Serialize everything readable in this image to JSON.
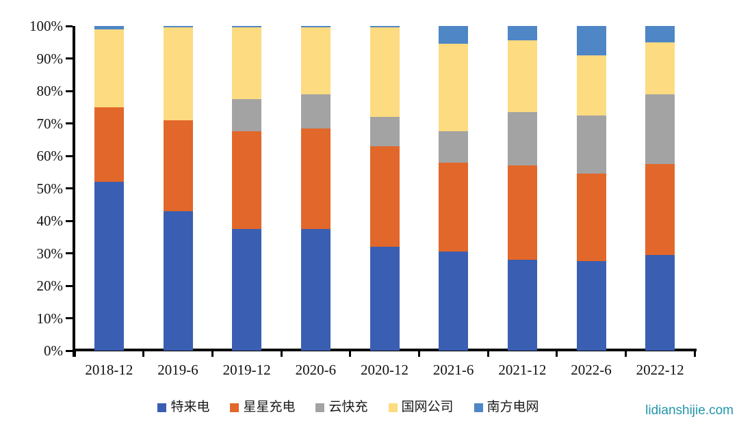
{
  "watermark": "lidianshijie.com",
  "chart_data": {
    "type": "bar",
    "stacked": true,
    "percent": true,
    "title": "",
    "xlabel": "",
    "ylabel": "",
    "ylim": [
      0,
      100
    ],
    "grid": false,
    "legend_position": "bottom",
    "categories": [
      "2018-12",
      "2019-6",
      "2019-12",
      "2020-6",
      "2020-12",
      "2021-6",
      "2021-12",
      "2022-6",
      "2022-12"
    ],
    "y_tick_labels": [
      "100%",
      "90%",
      "80%",
      "70%",
      "60%",
      "50%",
      "40%",
      "30%",
      "20%",
      "10%",
      "0%"
    ],
    "series": [
      {
        "key": "telaidian",
        "name": "特来电",
        "color": "#3A5EB1",
        "pattern": "solid",
        "values": [
          52,
          43,
          37.5,
          37.5,
          32,
          30.5,
          28,
          27.5,
          29.5
        ]
      },
      {
        "key": "xingxing",
        "name": "星星充电",
        "color": "#E2672A",
        "pattern": "solid",
        "values": [
          23,
          28,
          30,
          31,
          31,
          27.5,
          29,
          27,
          28
        ]
      },
      {
        "key": "yunkuaichong",
        "name": "云快充",
        "color": "#A3A3A3",
        "pattern": "speckle",
        "values": [
          0,
          0,
          10,
          10.5,
          9,
          9.5,
          16.5,
          18,
          21.5
        ]
      },
      {
        "key": "guowang",
        "name": "国网公司",
        "color": "#FDDB80",
        "pattern": "solid",
        "values": [
          24,
          28.5,
          22,
          20.5,
          27.5,
          27,
          22,
          18.5,
          16
        ]
      },
      {
        "key": "nanfang",
        "name": "南方电网",
        "color": "#4E86C6",
        "pattern": "solid",
        "values": [
          1,
          0.5,
          0.5,
          0.5,
          0.5,
          5.5,
          4.5,
          9,
          5
        ]
      }
    ]
  }
}
